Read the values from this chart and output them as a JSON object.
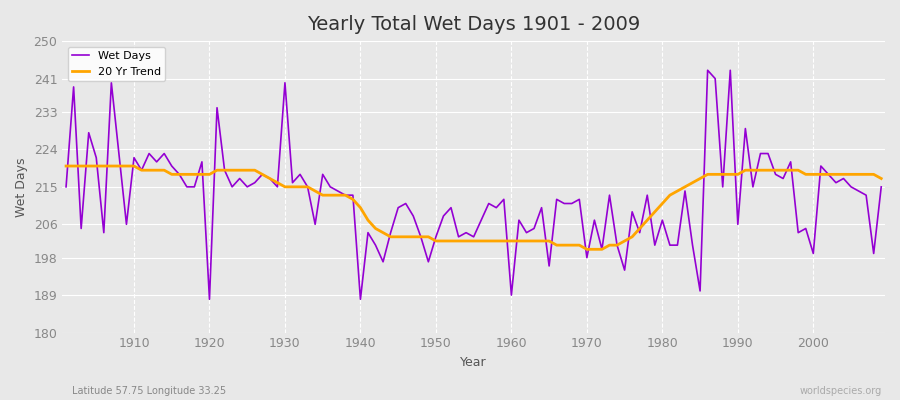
{
  "title": "Yearly Total Wet Days 1901 - 2009",
  "xlabel": "Year",
  "ylabel": "Wet Days",
  "subtitle": "Latitude 57.75 Longitude 33.25",
  "watermark": "worldspecies.org",
  "years": [
    1901,
    1902,
    1903,
    1904,
    1905,
    1906,
    1907,
    1908,
    1909,
    1910,
    1911,
    1912,
    1913,
    1914,
    1915,
    1916,
    1917,
    1918,
    1919,
    1920,
    1921,
    1922,
    1923,
    1924,
    1925,
    1926,
    1927,
    1928,
    1929,
    1930,
    1931,
    1932,
    1933,
    1934,
    1935,
    1936,
    1937,
    1938,
    1939,
    1940,
    1941,
    1942,
    1943,
    1944,
    1945,
    1946,
    1947,
    1948,
    1949,
    1950,
    1951,
    1952,
    1953,
    1954,
    1955,
    1956,
    1957,
    1958,
    1959,
    1960,
    1961,
    1962,
    1963,
    1964,
    1965,
    1966,
    1967,
    1968,
    1969,
    1970,
    1971,
    1972,
    1973,
    1974,
    1975,
    1976,
    1977,
    1978,
    1979,
    1980,
    1981,
    1982,
    1983,
    1984,
    1985,
    1986,
    1987,
    1988,
    1989,
    1990,
    1991,
    1992,
    1993,
    1994,
    1995,
    1996,
    1997,
    1998,
    1999,
    2000,
    2001,
    2002,
    2003,
    2004,
    2005,
    2006,
    2007,
    2008,
    2009
  ],
  "wet_days": [
    215,
    239,
    205,
    228,
    222,
    204,
    240,
    223,
    206,
    222,
    219,
    223,
    221,
    223,
    220,
    218,
    215,
    215,
    221,
    188,
    234,
    219,
    215,
    217,
    215,
    216,
    218,
    217,
    215,
    240,
    216,
    218,
    215,
    206,
    218,
    215,
    214,
    213,
    213,
    188,
    204,
    201,
    197,
    204,
    210,
    211,
    208,
    203,
    197,
    203,
    208,
    210,
    203,
    204,
    203,
    207,
    211,
    210,
    212,
    189,
    207,
    204,
    205,
    210,
    196,
    212,
    211,
    211,
    212,
    198,
    207,
    200,
    213,
    201,
    195,
    209,
    204,
    213,
    201,
    207,
    201,
    201,
    214,
    201,
    190,
    243,
    241,
    215,
    243,
    206,
    229,
    215,
    223,
    223,
    218,
    217,
    221,
    204,
    205,
    199,
    220,
    218,
    216,
    217,
    215,
    214,
    213,
    199,
    215
  ],
  "trend": [
    220,
    220,
    220,
    220,
    220,
    220,
    220,
    220,
    220,
    220,
    219,
    219,
    219,
    219,
    218,
    218,
    218,
    218,
    218,
    218,
    219,
    219,
    219,
    219,
    219,
    219,
    218,
    217,
    216,
    215,
    215,
    215,
    215,
    214,
    213,
    213,
    213,
    213,
    212,
    210,
    207,
    205,
    204,
    203,
    203,
    203,
    203,
    203,
    203,
    202,
    202,
    202,
    202,
    202,
    202,
    202,
    202,
    202,
    202,
    202,
    202,
    202,
    202,
    202,
    202,
    201,
    201,
    201,
    201,
    200,
    200,
    200,
    201,
    201,
    202,
    203,
    205,
    207,
    209,
    211,
    213,
    214,
    215,
    216,
    217,
    218,
    218,
    218,
    218,
    218,
    219,
    219,
    219,
    219,
    219,
    219,
    219,
    219,
    218,
    218,
    218,
    218,
    218,
    218,
    218,
    218,
    218,
    218,
    217
  ],
  "wet_days_color": "#9400D3",
  "trend_color": "#FFA500",
  "bg_color": "#e8e8e8",
  "plot_bg_color": "#e8e8e8",
  "grid_color": "#ffffff",
  "ylim": [
    180,
    250
  ],
  "yticks": [
    180,
    189,
    198,
    206,
    215,
    224,
    233,
    241,
    250
  ],
  "xlim_start": 1901,
  "xlim_end": 2009,
  "xticks": [
    1910,
    1920,
    1930,
    1940,
    1950,
    1960,
    1970,
    1980,
    1990,
    2000
  ],
  "title_fontsize": 14,
  "axis_fontsize": 9,
  "legend_loc": "upper left"
}
